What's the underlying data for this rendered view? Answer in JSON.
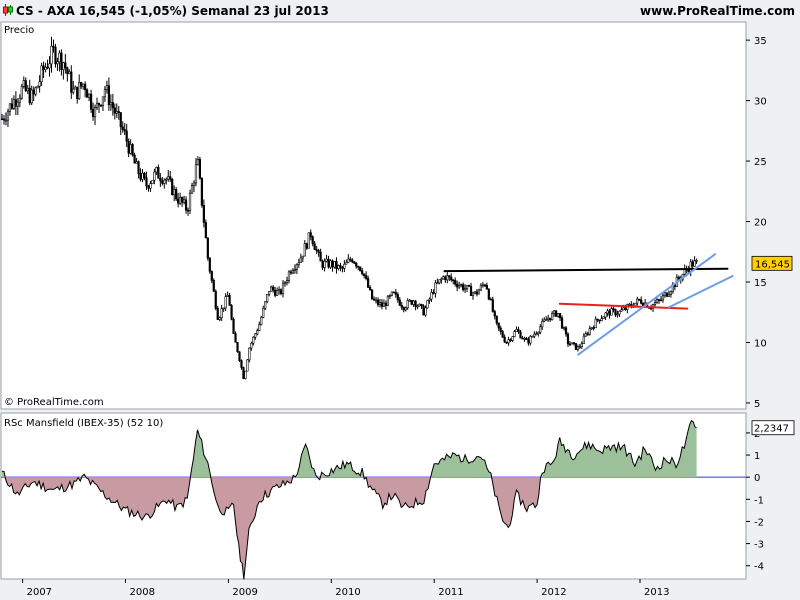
{
  "header": {
    "left_text": "CS - AXA    16,545 (-1,05%)    Semanal  23 jul 2013",
    "right_text": "www.ProRealTime.com",
    "icon": "candlestick-icon"
  },
  "colors": {
    "panel_bg": "#eef0f3",
    "plot_bg": "#ffffff",
    "candle": "#000000",
    "black_line": "#000000",
    "red_line": "#e8211c",
    "blue_line": "#6f9ce6",
    "price_label_bg": "#ffd000",
    "rsc_positive": "#9cc09a",
    "rsc_negative": "#c89aa2",
    "zero_line": "#3030ff"
  },
  "chart_data": [
    {
      "type": "candlestick",
      "panel_label": "Precio",
      "watermark": "© ProRealTime.com",
      "ylim": [
        4.5,
        36.5
      ],
      "y_ticks": [
        5,
        10,
        15,
        20,
        25,
        30,
        35
      ],
      "x_ticks": [
        "2007",
        "2008",
        "2009",
        "2010",
        "2011",
        "2012",
        "2013"
      ],
      "last_price_label": "16,545",
      "last_price": 16.545,
      "weekly_closes_approx": [
        [
          2006.8,
          28.5
        ],
        [
          2006.9,
          29.8
        ],
        [
          2007.0,
          31.0
        ],
        [
          2007.1,
          30.2
        ],
        [
          2007.2,
          32.5
        ],
        [
          2007.3,
          34.0
        ],
        [
          2007.4,
          33.2
        ],
        [
          2007.5,
          30.5
        ],
        [
          2007.6,
          31.5
        ],
        [
          2007.7,
          29.0
        ],
        [
          2007.8,
          31.0
        ],
        [
          2007.9,
          29.0
        ],
        [
          2008.0,
          27.0
        ],
        [
          2008.1,
          24.5
        ],
        [
          2008.2,
          23.0
        ],
        [
          2008.3,
          24.0
        ],
        [
          2008.4,
          23.5
        ],
        [
          2008.5,
          22.0
        ],
        [
          2008.6,
          21.0
        ],
        [
          2008.7,
          25.0
        ],
        [
          2008.75,
          21.0
        ],
        [
          2008.8,
          17.0
        ],
        [
          2008.9,
          12.0
        ],
        [
          2009.0,
          14.0
        ],
        [
          2009.05,
          10.5
        ],
        [
          2009.1,
          9.0
        ],
        [
          2009.15,
          7.0
        ],
        [
          2009.2,
          9.5
        ],
        [
          2009.3,
          11.5
        ],
        [
          2009.4,
          14.5
        ],
        [
          2009.5,
          14.0
        ],
        [
          2009.6,
          16.0
        ],
        [
          2009.7,
          17.0
        ],
        [
          2009.8,
          19.0
        ],
        [
          2009.9,
          16.5
        ],
        [
          2010.0,
          16.5
        ],
        [
          2010.1,
          16.0
        ],
        [
          2010.2,
          17.0
        ],
        [
          2010.3,
          16.0
        ],
        [
          2010.4,
          13.5
        ],
        [
          2010.5,
          13.0
        ],
        [
          2010.6,
          14.0
        ],
        [
          2010.7,
          13.0
        ],
        [
          2010.8,
          13.5
        ],
        [
          2010.9,
          12.5
        ],
        [
          2011.0,
          14.5
        ],
        [
          2011.1,
          15.5
        ],
        [
          2011.2,
          15.0
        ],
        [
          2011.3,
          14.5
        ],
        [
          2011.4,
          14.0
        ],
        [
          2011.5,
          15.0
        ],
        [
          2011.6,
          11.5
        ],
        [
          2011.7,
          10.0
        ],
        [
          2011.8,
          11.0
        ],
        [
          2011.9,
          10.0
        ],
        [
          2012.0,
          11.0
        ],
        [
          2012.1,
          12.0
        ],
        [
          2012.2,
          12.5
        ],
        [
          2012.3,
          10.0
        ],
        [
          2012.4,
          9.5
        ],
        [
          2012.5,
          11.0
        ],
        [
          2012.6,
          12.0
        ],
        [
          2012.7,
          12.5
        ],
        [
          2012.8,
          12.5
        ],
        [
          2012.9,
          13.0
        ],
        [
          2013.0,
          13.5
        ],
        [
          2013.1,
          13.0
        ],
        [
          2013.2,
          13.5
        ],
        [
          2013.3,
          14.5
        ],
        [
          2013.4,
          15.5
        ],
        [
          2013.5,
          16.5
        ],
        [
          2013.55,
          16.545
        ]
      ],
      "trendlines": [
        {
          "color": "black",
          "points": [
            [
              2011.1,
              15.9
            ],
            [
              2013.85,
              16.1
            ]
          ]
        },
        {
          "color": "red",
          "points": [
            [
              2012.22,
              13.2
            ],
            [
              2013.46,
              12.8
            ]
          ]
        },
        {
          "color": "blue",
          "points": [
            [
              2012.4,
              9.0
            ],
            [
              2013.73,
              17.3
            ]
          ]
        },
        {
          "color": "blue",
          "points": [
            [
              2013.28,
              12.9
            ],
            [
              2013.9,
              15.5
            ]
          ]
        }
      ]
    },
    {
      "type": "area",
      "panel_label": "RSc Mansfield (IBEX-35) (52 10)",
      "ylim": [
        -4.6,
        2.9
      ],
      "y_ticks": [
        -4,
        -3,
        -2,
        -1,
        0,
        1,
        2
      ],
      "y_tick_labels": [
        "-4",
        "-3",
        "-2",
        "-1",
        "0",
        "1",
        "2"
      ],
      "last_value_label": "2,2347",
      "series_approx": [
        [
          2006.8,
          0.2
        ],
        [
          2006.95,
          -0.8
        ],
        [
          2007.1,
          -0.2
        ],
        [
          2007.3,
          -0.6
        ],
        [
          2007.5,
          -0.3
        ],
        [
          2007.6,
          0.0
        ],
        [
          2007.8,
          -0.8
        ],
        [
          2008.0,
          -1.5
        ],
        [
          2008.2,
          -1.8
        ],
        [
          2008.4,
          -1.0
        ],
        [
          2008.5,
          -1.4
        ],
        [
          2008.6,
          -1.0
        ],
        [
          2008.7,
          2.1
        ],
        [
          2008.8,
          0.6
        ],
        [
          2008.9,
          -1.4
        ],
        [
          2009.0,
          -1.6
        ],
        [
          2009.05,
          -1.2
        ],
        [
          2009.1,
          -3.2
        ],
        [
          2009.15,
          -4.4
        ],
        [
          2009.2,
          -2.5
        ],
        [
          2009.3,
          -1.0
        ],
        [
          2009.45,
          -0.5
        ],
        [
          2009.55,
          -0.3
        ],
        [
          2009.65,
          0.0
        ],
        [
          2009.75,
          1.4
        ],
        [
          2009.85,
          0.0
        ],
        [
          2010.0,
          0.3
        ],
        [
          2010.15,
          0.6
        ],
        [
          2010.3,
          0.2
        ],
        [
          2010.4,
          -0.6
        ],
        [
          2010.5,
          -1.2
        ],
        [
          2010.6,
          -0.8
        ],
        [
          2010.7,
          -1.4
        ],
        [
          2010.8,
          -1.2
        ],
        [
          2010.9,
          -1.0
        ],
        [
          2011.0,
          0.6
        ],
        [
          2011.1,
          0.8
        ],
        [
          2011.2,
          1.0
        ],
        [
          2011.3,
          0.8
        ],
        [
          2011.45,
          1.0
        ],
        [
          2011.55,
          0.0
        ],
        [
          2011.65,
          -1.8
        ],
        [
          2011.72,
          -2.3
        ],
        [
          2011.8,
          -0.8
        ],
        [
          2011.9,
          -1.4
        ],
        [
          2012.0,
          -1.2
        ],
        [
          2012.05,
          0.4
        ],
        [
          2012.15,
          0.6
        ],
        [
          2012.22,
          1.6
        ],
        [
          2012.35,
          1.0
        ],
        [
          2012.5,
          1.5
        ],
        [
          2012.6,
          1.2
        ],
        [
          2012.75,
          1.4
        ],
        [
          2012.85,
          1.3
        ],
        [
          2012.95,
          0.6
        ],
        [
          2013.05,
          1.3
        ],
        [
          2013.15,
          0.4
        ],
        [
          2013.25,
          0.8
        ],
        [
          2013.35,
          0.6
        ],
        [
          2013.45,
          1.6
        ],
        [
          2013.5,
          2.5
        ],
        [
          2013.55,
          2.2347
        ]
      ]
    }
  ]
}
